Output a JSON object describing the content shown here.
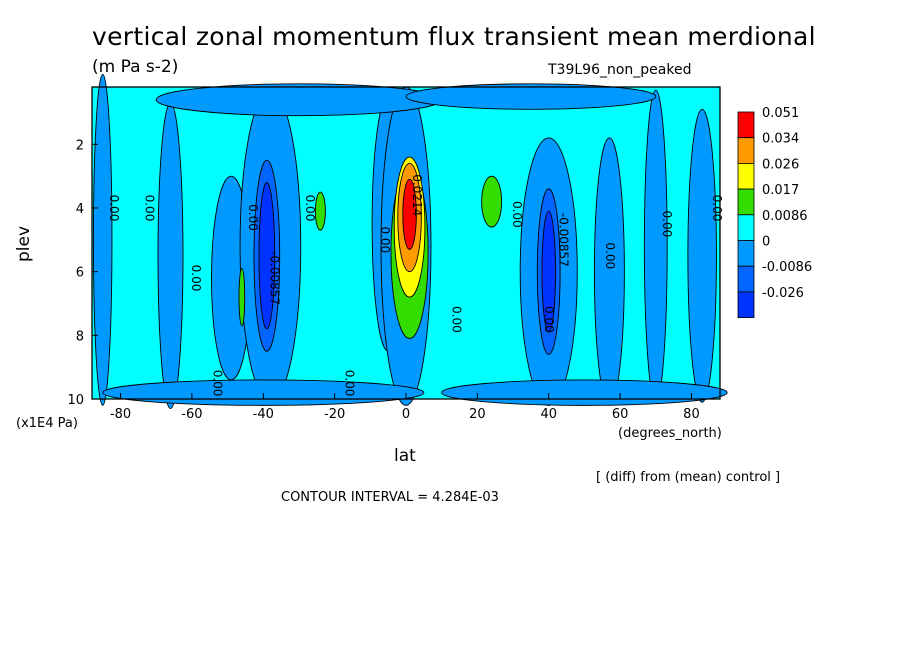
{
  "chart_data": {
    "type": "contour",
    "title": "vertical zonal momentum flux transient mean merdional",
    "units": "(m Pa s-2)",
    "run_label": "T39L96_non_peaked",
    "xlabel": "lat",
    "x_units": "(degrees_north)",
    "ylabel": "plev",
    "y_units": "(x1E4 Pa)",
    "diff_note": "[ (diff) from (mean) control ]",
    "contour_interval": "CONTOUR INTERVAL = 4.284E-03",
    "xlim": [
      -88,
      88
    ],
    "ylim": [
      10,
      0.2
    ],
    "x_ticks": [
      "-80",
      "-60",
      "-40",
      "-20",
      "0",
      "20",
      "40",
      "60",
      "80"
    ],
    "x_tick_values": [
      -80,
      -60,
      -40,
      -20,
      0,
      20,
      40,
      60,
      80
    ],
    "y_ticks": [
      "2",
      "4",
      "6",
      "8",
      "10"
    ],
    "y_tick_values": [
      2,
      4,
      6,
      8,
      10
    ],
    "colorbar": {
      "levels": [
        "0.051",
        "0.034",
        "0.026",
        "0.017",
        "0.0086",
        "0",
        "-0.0086",
        "-0.026"
      ],
      "colors": [
        "#ff0000",
        "#ff9900",
        "#ffff00",
        "#33dd00",
        "#00ffff",
        "#0099ff",
        "#0066ff",
        "#0033ff"
      ]
    },
    "features": [
      {
        "lat": 0,
        "plev": 4.2,
        "value": 0.051,
        "kind": "max"
      },
      {
        "lat": -40,
        "plev": 5.5,
        "value": -0.026,
        "kind": "min"
      },
      {
        "lat": 40,
        "plev": 6,
        "value": -0.026,
        "kind": "min"
      },
      {
        "lat": 25,
        "plev": 3.8,
        "value": 0.0086,
        "kind": "positive"
      },
      {
        "lat": -25,
        "plev": 4.1,
        "value": 0.0086,
        "kind": "positive"
      }
    ],
    "contour_labels": [
      {
        "text": "0.00",
        "lat": -83,
        "plev": 4.0
      },
      {
        "text": "0.00",
        "lat": -73,
        "plev": 4.0
      },
      {
        "text": "0.00",
        "lat": -60,
        "plev": 6.2
      },
      {
        "text": "0.00",
        "lat": -54,
        "plev": 9.5
      },
      {
        "text": "0.00",
        "lat": -44,
        "plev": 4.3
      },
      {
        "text": "-0.00857",
        "lat": -38,
        "plev": 6.2
      },
      {
        "text": "0.00",
        "lat": -28,
        "plev": 4.0
      },
      {
        "text": "0.00",
        "lat": -17,
        "plev": 9.5
      },
      {
        "text": "0.00",
        "lat": -7,
        "plev": 5.0
      },
      {
        "text": "0.0214",
        "lat": 2,
        "plev": 3.6
      },
      {
        "text": "0.00",
        "lat": 13,
        "plev": 7.5
      },
      {
        "text": "0.00",
        "lat": 30,
        "plev": 4.2
      },
      {
        "text": "0.00",
        "lat": 39,
        "plev": 7.5
      },
      {
        "text": "-0.00857",
        "lat": 43,
        "plev": 5.0
      },
      {
        "text": "0.00",
        "lat": 56,
        "plev": 5.5
      },
      {
        "text": "0.00",
        "lat": 72,
        "plev": 4.5
      },
      {
        "text": "0.00",
        "lat": 86,
        "plev": 4.0
      }
    ]
  }
}
